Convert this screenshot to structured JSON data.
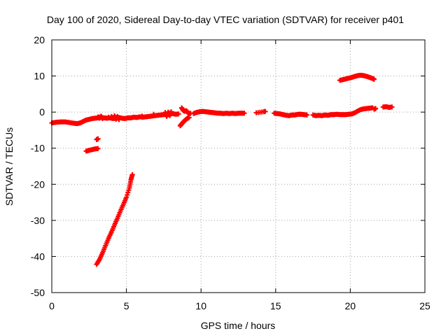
{
  "chart_data": {
    "type": "scatter",
    "title": "Day 100 of 2020, Sidereal Day-to-day VTEC variation (SDTVAR) for receiver p401",
    "xlabel": "GPS time / hours",
    "ylabel": "SDTVAR / TECUs",
    "xlim": [
      0,
      25
    ],
    "ylim": [
      -50,
      20
    ],
    "xticks": [
      0,
      5,
      10,
      15,
      20,
      25
    ],
    "yticks": [
      -50,
      -40,
      -30,
      -20,
      -10,
      0,
      10,
      20
    ],
    "grid": true,
    "marker": "plus",
    "color": "#ff0000",
    "series": [
      {
        "segments": [
          [
            [
              0.0,
              -3.0
            ],
            [
              0.3,
              -2.8
            ],
            [
              0.6,
              -2.7
            ],
            [
              0.9,
              -2.7
            ],
            [
              1.2,
              -2.9
            ],
            [
              1.5,
              -3.1
            ],
            [
              1.7,
              -3.2
            ],
            [
              1.9,
              -3.0
            ],
            [
              2.1,
              -2.6
            ],
            [
              2.3,
              -2.2
            ],
            [
              2.5,
              -2.0
            ],
            [
              2.7,
              -1.8
            ],
            [
              2.9,
              -1.7
            ],
            [
              3.1,
              -1.6
            ],
            [
              3.3,
              -1.5
            ],
            [
              3.5,
              -1.6
            ],
            [
              3.7,
              -1.7
            ],
            [
              3.9,
              -1.6
            ],
            [
              4.1,
              -1.8
            ],
            [
              4.3,
              -1.7
            ],
            [
              4.5,
              -1.5
            ],
            [
              4.7,
              -1.7
            ],
            [
              4.9,
              -1.8
            ],
            [
              5.1,
              -1.6
            ],
            [
              5.3,
              -1.6
            ],
            [
              5.5,
              -1.4
            ],
            [
              5.7,
              -1.5
            ],
            [
              5.9,
              -1.3
            ],
            [
              6.1,
              -1.4
            ],
            [
              6.3,
              -1.3
            ],
            [
              6.5,
              -1.2
            ],
            [
              6.7,
              -1.1
            ],
            [
              6.9,
              -1.0
            ],
            [
              7.1,
              -0.9
            ],
            [
              7.3,
              -0.8
            ],
            [
              7.5,
              -0.7
            ],
            [
              7.7,
              -0.5
            ],
            [
              7.9,
              -0.3
            ],
            [
              8.1,
              -0.4
            ],
            [
              8.3,
              -0.6
            ],
            [
              8.5,
              -0.5
            ]
          ],
          [
            [
              3.1,
              -1.3
            ],
            [
              3.2,
              -1.7
            ],
            [
              3.3,
              -1.1
            ],
            [
              3.4,
              -1.8
            ],
            [
              4.2,
              -1.0
            ],
            [
              4.3,
              -2.0
            ],
            [
              4.4,
              -1.2
            ],
            [
              4.5,
              -2.1
            ],
            [
              7.6,
              -0.1
            ],
            [
              7.7,
              -1.2
            ],
            [
              7.8,
              0.0
            ],
            [
              7.9,
              -1.0
            ],
            [
              8.0,
              0.1
            ]
          ],
          [
            [
              8.7,
              1.2
            ],
            [
              8.8,
              0.5
            ],
            [
              8.9,
              0.2
            ],
            [
              9.0,
              0.4
            ],
            [
              9.1,
              0.0
            ],
            [
              9.2,
              -0.5
            ],
            [
              9.3,
              -0.3
            ]
          ],
          [
            [
              8.6,
              -3.8
            ],
            [
              8.7,
              -3.3
            ],
            [
              8.8,
              -2.8
            ],
            [
              8.9,
              -2.4
            ],
            [
              9.0,
              -2.0
            ],
            [
              9.1,
              -1.7
            ],
            [
              9.2,
              -1.5
            ]
          ],
          [
            [
              9.5,
              -0.4
            ],
            [
              9.7,
              -0.1
            ],
            [
              9.9,
              0.1
            ],
            [
              10.1,
              0.2
            ],
            [
              10.3,
              0.1
            ],
            [
              10.5,
              0.0
            ],
            [
              10.7,
              -0.1
            ],
            [
              10.9,
              -0.2
            ],
            [
              11.1,
              -0.3
            ],
            [
              11.3,
              -0.3
            ],
            [
              11.5,
              -0.4
            ],
            [
              11.7,
              -0.3
            ],
            [
              11.9,
              -0.4
            ],
            [
              12.1,
              -0.3
            ],
            [
              12.3,
              -0.4
            ],
            [
              12.5,
              -0.3
            ],
            [
              12.7,
              -0.3
            ],
            [
              12.9,
              -0.3
            ]
          ],
          [
            [
              13.7,
              -0.2
            ],
            [
              14.2,
              0.1
            ],
            [
              14.3,
              0.2
            ]
          ],
          [
            [
              14.9,
              -0.3
            ],
            [
              15.1,
              -0.4
            ],
            [
              15.3,
              -0.5
            ],
            [
              15.5,
              -0.7
            ],
            [
              15.7,
              -0.9
            ],
            [
              15.9,
              -1.0
            ],
            [
              16.1,
              -0.8
            ],
            [
              16.3,
              -0.8
            ],
            [
              16.5,
              -0.6
            ],
            [
              16.7,
              -0.6
            ],
            [
              16.9,
              -0.7
            ],
            [
              17.1,
              -0.8
            ]
          ],
          [
            [
              17.5,
              -0.8
            ],
            [
              17.7,
              -1.0
            ],
            [
              17.9,
              -0.9
            ],
            [
              18.1,
              -1.0
            ],
            [
              18.3,
              -0.8
            ],
            [
              18.5,
              -0.9
            ],
            [
              18.7,
              -0.7
            ],
            [
              18.9,
              -0.7
            ],
            [
              19.1,
              -0.6
            ],
            [
              19.3,
              -0.7
            ],
            [
              19.5,
              -0.7
            ],
            [
              19.7,
              -0.7
            ],
            [
              19.9,
              -0.6
            ],
            [
              20.1,
              -0.5
            ],
            [
              20.3,
              -0.2
            ],
            [
              20.5,
              0.3
            ],
            [
              20.7,
              0.7
            ],
            [
              20.9,
              0.9
            ],
            [
              21.1,
              1.0
            ],
            [
              21.3,
              1.1
            ],
            [
              21.5,
              1.2
            ]
          ],
          [
            [
              21.6,
              0.8
            ],
            [
              21.7,
              1.0
            ]
          ],
          [
            [
              22.2,
              1.4
            ],
            [
              22.4,
              1.5
            ],
            [
              22.6,
              1.3
            ],
            [
              22.8,
              1.4
            ]
          ],
          [
            [
              19.3,
              8.8
            ],
            [
              19.5,
              9.0
            ],
            [
              19.7,
              9.2
            ],
            [
              19.9,
              9.4
            ],
            [
              20.1,
              9.6
            ],
            [
              20.3,
              9.9
            ],
            [
              20.5,
              10.1
            ],
            [
              20.7,
              10.2
            ],
            [
              20.9,
              10.1
            ],
            [
              21.1,
              9.9
            ],
            [
              21.3,
              9.6
            ],
            [
              21.5,
              9.3
            ],
            [
              21.6,
              9.1
            ]
          ],
          [
            [
              2.3,
              -10.8
            ],
            [
              2.5,
              -10.6
            ],
            [
              2.7,
              -10.4
            ],
            [
              2.9,
              -10.2
            ],
            [
              3.1,
              -10.1
            ]
          ],
          [
            [
              3.0,
              -7.6
            ],
            [
              3.1,
              -7.4
            ]
          ],
          [
            [
              3.0,
              -42.2
            ],
            [
              3.2,
              -40.8
            ],
            [
              3.4,
              -39.0
            ],
            [
              3.6,
              -37.0
            ],
            [
              3.8,
              -35.0
            ],
            [
              4.0,
              -33.2
            ],
            [
              4.2,
              -31.3
            ],
            [
              4.4,
              -29.4
            ],
            [
              4.6,
              -27.4
            ],
            [
              4.8,
              -25.5
            ],
            [
              5.0,
              -23.6
            ],
            [
              5.2,
              -21.0
            ],
            [
              5.3,
              -18.8
            ],
            [
              5.4,
              -17.3
            ]
          ]
        ]
      }
    ]
  }
}
